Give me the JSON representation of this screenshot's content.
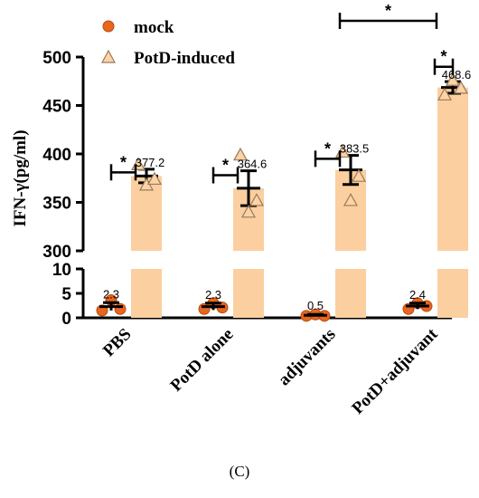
{
  "panel_label": "(C)",
  "colors": {
    "mock": "#e8661e",
    "mock_edge": "#b84a10",
    "potd_bar": "#fbcf9f",
    "potd_marker": "#fbd3a6",
    "potd_marker_edge": "#9a7a5a",
    "axis": "#000000"
  },
  "chart_data": {
    "type": "bar",
    "ylabel": "IFN-γ(pg/ml)",
    "categories": [
      "PBS",
      "PotD alone",
      "adjuvants",
      "PotD+adjuvant"
    ],
    "y_axis": {
      "broken": true,
      "lower_segment": {
        "range": [
          0,
          10
        ],
        "ticks": [
          "0",
          "5",
          "10"
        ]
      },
      "upper_segment": {
        "range": [
          300,
          500
        ],
        "ticks": [
          "300",
          "350",
          "400",
          "450",
          "500"
        ]
      }
    },
    "legend": {
      "position": "top-left",
      "items": [
        {
          "label": "mock",
          "marker": "circle"
        },
        {
          "label": "PotD-induced",
          "marker": "triangle"
        }
      ]
    },
    "series": [
      {
        "name": "mock",
        "values": [
          2.3,
          2.3,
          0.5,
          2.4
        ],
        "value_labels": [
          "2.3",
          "2.3",
          "0.5",
          "2.4"
        ],
        "error": [
          0.8,
          0.7,
          0.2,
          0.6
        ],
        "points": [
          [
            1.5,
            3.6,
            1.8
          ],
          [
            1.8,
            3.0,
            2.1
          ],
          [
            0.4,
            0.7,
            0.4
          ],
          [
            1.8,
            3.0,
            2.4
          ]
        ]
      },
      {
        "name": "PotD-induced",
        "values": [
          377.2,
          364.6,
          383.5,
          468.6
        ],
        "value_labels": [
          "377.2",
          "364.6",
          "383.5",
          "468.6"
        ],
        "error": [
          7,
          18,
          15,
          6
        ],
        "points": [
          [
            389,
            368,
            374
          ],
          [
            399,
            340,
            352
          ],
          [
            402,
            352,
            377
          ],
          [
            461,
            476,
            468
          ]
        ]
      }
    ],
    "significance": [
      {
        "label": "*",
        "between": [
          "mock",
          "PotD-induced"
        ],
        "category": "PBS"
      },
      {
        "label": "*",
        "between": [
          "mock",
          "PotD-induced"
        ],
        "category": "PotD alone"
      },
      {
        "label": "*",
        "between": [
          "mock",
          "PotD-induced"
        ],
        "category": "adjuvants"
      },
      {
        "label": "*",
        "between": [
          "mock",
          "PotD-induced"
        ],
        "category": "PotD+adjuvant"
      },
      {
        "label": "*",
        "between": [
          "adjuvants PotD-induced",
          "PotD+adjuvant PotD-induced"
        ],
        "category": "adjuvants–PotD+adjuvant"
      }
    ]
  }
}
